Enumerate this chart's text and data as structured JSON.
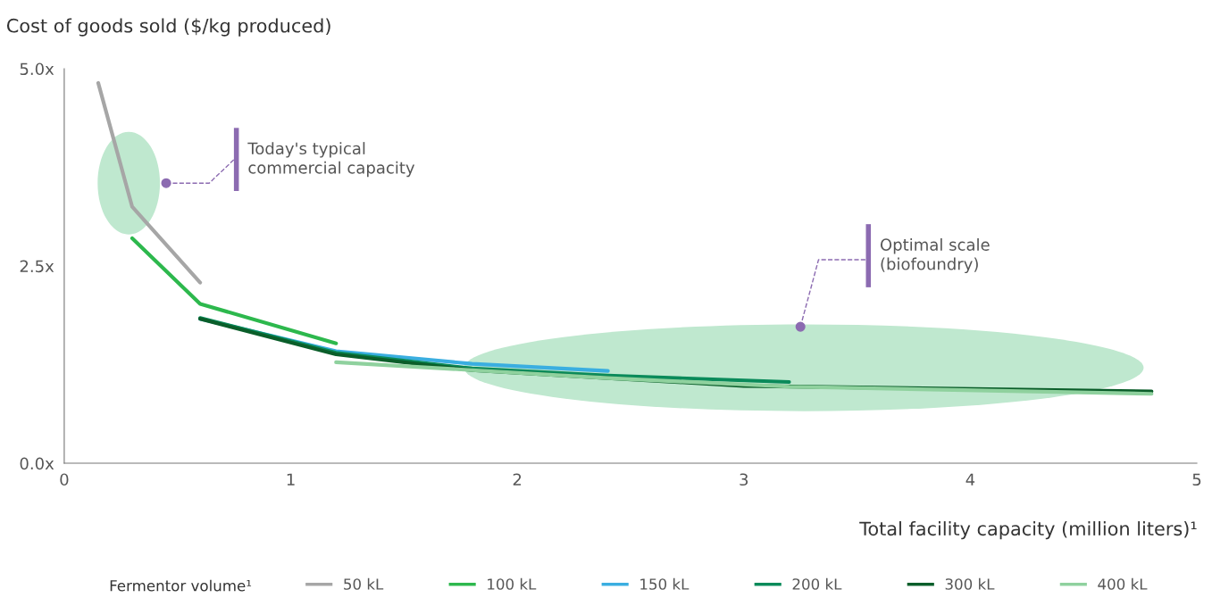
{
  "chart_data": {
    "type": "line",
    "ylabel": "Cost of goods sold ($/kg produced)",
    "xlabel": "Total facility capacity (million liters)¹",
    "legend_title": "Fermentor volume¹",
    "series": [
      {
        "name": "50 kL",
        "color": "#a6a6a6",
        "x": [
          0.15,
          0.3,
          0.6
        ],
        "values": [
          4.82,
          3.25,
          2.29
        ]
      },
      {
        "name": "100 kL",
        "color": "#2db84d",
        "x": [
          0.3,
          0.6,
          1.2
        ],
        "values": [
          2.85,
          2.02,
          1.52
        ]
      },
      {
        "name": "150 kL",
        "color": "#3aaee0",
        "x": [
          0.6,
          1.2,
          1.8,
          2.4
        ],
        "values": [
          1.83,
          1.42,
          1.26,
          1.17
        ]
      },
      {
        "name": "200 kL",
        "color": "#0a8a5a",
        "x": [
          0.6,
          1.2,
          1.8,
          2.4,
          3.2
        ],
        "values": [
          1.84,
          1.4,
          1.2,
          1.11,
          1.03
        ]
      },
      {
        "name": "300 kL",
        "color": "#0b5e2a",
        "x": [
          0.6,
          1.2,
          1.8,
          2.4,
          3.0,
          4.8
        ],
        "values": [
          1.83,
          1.38,
          1.18,
          1.08,
          0.98,
          0.91
        ]
      },
      {
        "name": "400 kL",
        "color": "#8fd19e",
        "x": [
          1.2,
          1.8,
          2.4,
          3.2,
          4.8
        ],
        "values": [
          1.28,
          1.18,
          1.08,
          0.97,
          0.88
        ]
      }
    ],
    "annotations": [
      {
        "text": "Today's typical\ncommercial capacity",
        "x": 0.45,
        "y": 3.55
      },
      {
        "text": "Optimal scale\n(biofoundry)",
        "x": 3.25,
        "y": 1.73
      }
    ],
    "xlim": [
      0,
      5
    ],
    "ylim": [
      0,
      5
    ],
    "xticks": [
      0,
      1,
      2,
      3,
      4,
      5
    ],
    "yticks": [
      {
        "value": 0,
        "label": "0.0x"
      },
      {
        "value": 2.5,
        "label": "2.5x"
      },
      {
        "value": 5,
        "label": "5.0x"
      }
    ],
    "grid": false,
    "legend": "bottom",
    "marker": "none",
    "line_style": "solid"
  }
}
